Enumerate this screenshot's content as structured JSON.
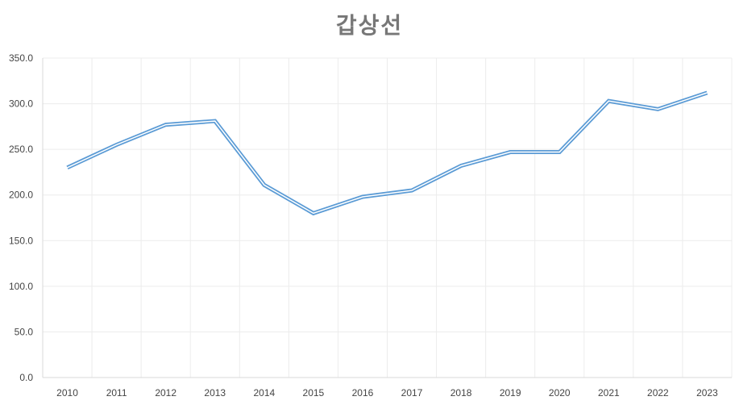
{
  "chart_data": {
    "type": "line",
    "title": "갑상선",
    "xlabel": "",
    "ylabel": "",
    "categories": [
      "2010",
      "2011",
      "2012",
      "2013",
      "2014",
      "2015",
      "2016",
      "2017",
      "2018",
      "2019",
      "2020",
      "2021",
      "2022",
      "2023"
    ],
    "series": [
      {
        "values": [
          230,
          255,
          277,
          281,
          211,
          180,
          198,
          205,
          232,
          247,
          247,
          303,
          294,
          312
        ]
      }
    ],
    "ylim": [
      0,
      350
    ],
    "yticks": [
      "0.0",
      "50.0",
      "100.0",
      "150.0",
      "200.0",
      "250.0",
      "300.0",
      "350.0"
    ],
    "grid": true,
    "line_color": "#5B9BD5",
    "line_style": "double"
  }
}
